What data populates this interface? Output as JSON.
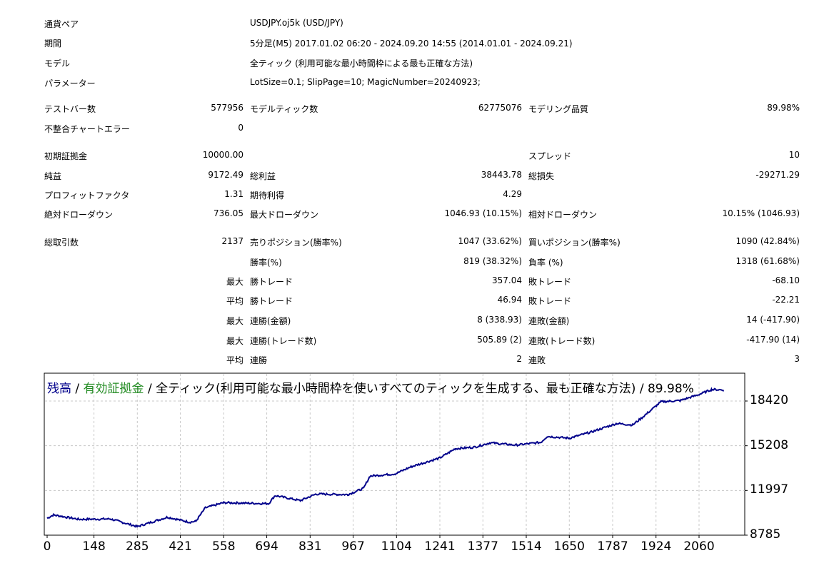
{
  "header": [
    {
      "label": "通貨ペア",
      "value": "USDJPY.oj5k (USD/JPY)"
    },
    {
      "label": "期間",
      "value": "5分足(M5) 2017.01.02 06:20 - 2024.09.20 14:55 (2014.01.01 - 2024.09.21)"
    },
    {
      "label": "モデル",
      "value": "全ティック (利用可能な最小時間枠による最も正確な方法)"
    },
    {
      "label": "パラメーター",
      "value": "LotSize=0.1; SlipPage=10; MagicNumber=20240923;"
    }
  ],
  "stats": [
    [
      "テストバー数",
      "577956",
      "モデルティック数",
      "62775076",
      "モデリング品質",
      "89.98%"
    ],
    [
      "不整合チャートエラー",
      "0",
      "",
      "",
      "",
      ""
    ],
    [
      "初期証拠金",
      "10000.00",
      "",
      "",
      "スプレッド",
      "10"
    ],
    [
      "純益",
      "9172.49",
      "総利益",
      "38443.78",
      "総損失",
      "-29271.29"
    ],
    [
      "プロフィットファクタ",
      "1.31",
      "期待利得",
      "4.29",
      "",
      ""
    ],
    [
      "絶対ドローダウン",
      "736.05",
      "最大ドローダウン",
      "1046.93 (10.15%)",
      "相対ドローダウン",
      "10.15% (1046.93)"
    ],
    [
      "総取引数",
      "2137",
      "売りポジション(勝率%)",
      "1047 (33.62%)",
      "買いポジション(勝率%)",
      "1090 (42.84%)"
    ],
    [
      "",
      "",
      "勝率(%)",
      "819 (38.32%)",
      "負率 (%)",
      "1318 (61.68%)"
    ],
    [
      "",
      "最大",
      "勝トレード",
      "357.04",
      "敗トレード",
      "-68.10"
    ],
    [
      "",
      "平均",
      "勝トレード",
      "46.94",
      "敗トレード",
      "-22.21"
    ],
    [
      "",
      "最大",
      "連勝(金額)",
      "8 (338.93)",
      "連敗(金額)",
      "14 (-417.90)"
    ],
    [
      "",
      "最大",
      "連勝(トレード数)",
      "505.89 (2)",
      "連敗(トレード数)",
      "-417.90 (14)"
    ],
    [
      "",
      "平均",
      "連勝",
      "2",
      "連敗",
      "3"
    ]
  ],
  "chart_data": {
    "type": "line",
    "legend": {
      "balance": "残高",
      "sep1": " / ",
      "equity": "有効証拠金",
      "rest": " / 全ティック(利用可能な最小時間枠を使いすべてのティックを生成する、最も正確な方法) / 89.98%"
    },
    "colors": {
      "balance": "#00008B",
      "equity": "#228B22",
      "grid": "#c8c8c8"
    },
    "xlabel": "",
    "ylabel": "",
    "xlim": [
      0,
      2137
    ],
    "ylim": [
      8785,
      20400
    ],
    "x_ticks": [
      "0",
      "148",
      "285",
      "421",
      "558",
      "694",
      "831",
      "967",
      "1104",
      "1241",
      "1377",
      "1514",
      "1650",
      "1787",
      "1924",
      "2060"
    ],
    "y_ticks": [
      "18420",
      "15208",
      "11997",
      "8785"
    ],
    "series": [
      {
        "name": "残高",
        "points": [
          [
            0,
            10000
          ],
          [
            20,
            10240
          ],
          [
            100,
            9925
          ],
          [
            200,
            9950
          ],
          [
            285,
            9400
          ],
          [
            380,
            10080
          ],
          [
            450,
            9720
          ],
          [
            470,
            9780
          ],
          [
            500,
            10750
          ],
          [
            558,
            11120
          ],
          [
            700,
            11050
          ],
          [
            720,
            11630
          ],
          [
            800,
            11270
          ],
          [
            850,
            11740
          ],
          [
            950,
            11700
          ],
          [
            1000,
            12150
          ],
          [
            1020,
            13030
          ],
          [
            1100,
            13190
          ],
          [
            1150,
            13700
          ],
          [
            1241,
            14330
          ],
          [
            1290,
            15000
          ],
          [
            1350,
            15100
          ],
          [
            1400,
            15420
          ],
          [
            1480,
            15250
          ],
          [
            1560,
            15450
          ],
          [
            1580,
            15880
          ],
          [
            1650,
            15750
          ],
          [
            1720,
            16200
          ],
          [
            1800,
            16810
          ],
          [
            1850,
            16700
          ],
          [
            1880,
            17230
          ],
          [
            1940,
            18370
          ],
          [
            2000,
            18450
          ],
          [
            2060,
            18890
          ],
          [
            2100,
            19250
          ],
          [
            2137,
            19220
          ]
        ]
      }
    ]
  }
}
